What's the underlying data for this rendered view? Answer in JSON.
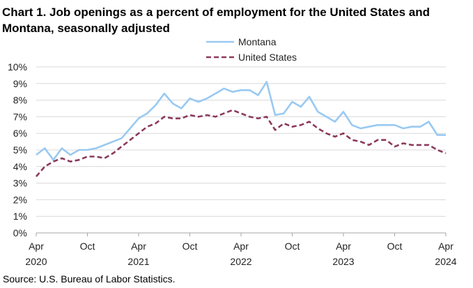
{
  "header": {
    "title": "Chart 1. Job openings as a percent of employment for the United States and Montana, seasonally adjusted"
  },
  "footer": {
    "source": "Source: U.S. Bureau of Labor Statistics."
  },
  "chart_data": {
    "type": "line",
    "title": "Chart 1. Job openings as a percent of employment for the United States and Montana, seasonally adjusted",
    "xlabel": "",
    "ylabel": "",
    "ylim": [
      0,
      10
    ],
    "y_ticks": [
      "0%",
      "1%",
      "2%",
      "3%",
      "4%",
      "5%",
      "6%",
      "7%",
      "8%",
      "9%",
      "10%"
    ],
    "x_ticks": [
      {
        "index": 0,
        "month": "Apr",
        "year": "2020"
      },
      {
        "index": 6,
        "month": "Oct",
        "year": ""
      },
      {
        "index": 12,
        "month": "Apr",
        "year": "2021"
      },
      {
        "index": 18,
        "month": "Oct",
        "year": ""
      },
      {
        "index": 24,
        "month": "Apr",
        "year": "2022"
      },
      {
        "index": 30,
        "month": "Oct",
        "year": ""
      },
      {
        "index": 36,
        "month": "Apr",
        "year": "2023"
      },
      {
        "index": 42,
        "month": "Oct",
        "year": ""
      },
      {
        "index": 48,
        "month": "Apr",
        "year": "2024"
      }
    ],
    "x_start": "Apr 2020",
    "x_end": "Apr 2024",
    "grid": true,
    "legend_position": "top-center",
    "series": [
      {
        "name": "Montana",
        "color": "#99c9f2",
        "style": "solid",
        "values": [
          4.7,
          5.1,
          4.4,
          5.1,
          4.7,
          5.0,
          5.0,
          5.1,
          5.3,
          5.5,
          5.7,
          6.3,
          6.9,
          7.2,
          7.7,
          8.4,
          7.8,
          7.5,
          8.1,
          7.9,
          8.1,
          8.4,
          8.7,
          8.5,
          8.6,
          8.6,
          8.3,
          9.1,
          7.1,
          7.2,
          7.9,
          7.6,
          8.2,
          7.3,
          7.0,
          6.7,
          7.3,
          6.5,
          6.3,
          6.4,
          6.5,
          6.5,
          6.5,
          6.3,
          6.4,
          6.4,
          6.7,
          5.9,
          5.9
        ]
      },
      {
        "name": "United States",
        "color": "#8b3a5c",
        "style": "dashed",
        "values": [
          3.4,
          4.0,
          4.3,
          4.5,
          4.3,
          4.4,
          4.6,
          4.6,
          4.5,
          4.8,
          5.2,
          5.6,
          6.0,
          6.4,
          6.6,
          7.0,
          6.9,
          6.9,
          7.1,
          7.0,
          7.1,
          7.0,
          7.2,
          7.4,
          7.2,
          7.0,
          6.9,
          7.0,
          6.2,
          6.6,
          6.4,
          6.5,
          6.7,
          6.3,
          6.0,
          5.8,
          6.0,
          5.6,
          5.5,
          5.3,
          5.6,
          5.6,
          5.2,
          5.4,
          5.3,
          5.3,
          5.3,
          5.0,
          4.8
        ]
      }
    ]
  }
}
